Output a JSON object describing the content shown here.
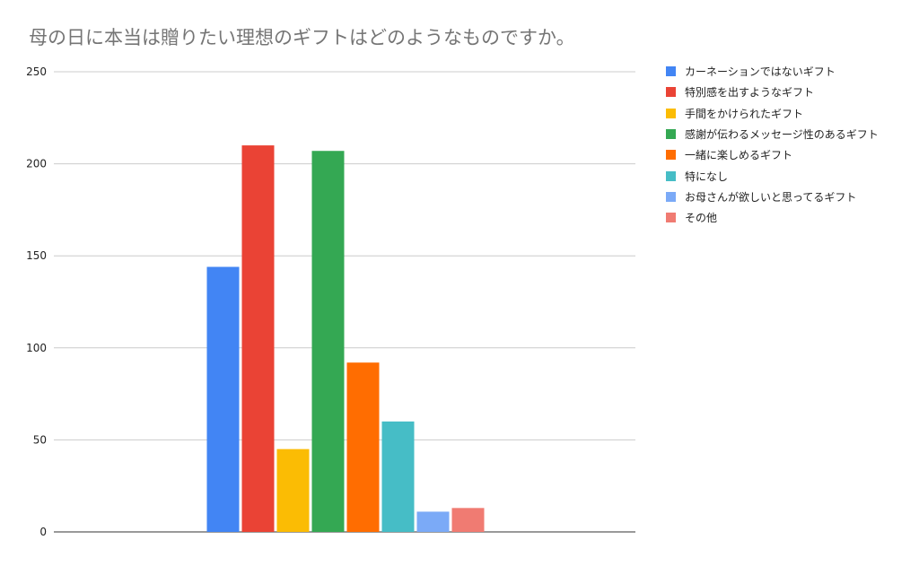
{
  "chart_data": {
    "type": "bar",
    "title": "母の日に本当は贈りたい理想のギフトはどのようなものですか。",
    "xlabel": "",
    "ylabel": "",
    "ylim": [
      0,
      250
    ],
    "yticks": [
      0,
      50,
      100,
      150,
      200,
      250
    ],
    "grid": true,
    "legend_position": "right",
    "series": [
      {
        "name": "カーネーションではないギフト",
        "values": [
          144
        ],
        "color": "#4285f4"
      },
      {
        "name": "特別感を出すようなギフト",
        "values": [
          210
        ],
        "color": "#ea4335"
      },
      {
        "name": "手間をかけられたギフト",
        "values": [
          45
        ],
        "color": "#fbbc04"
      },
      {
        "name": "感謝が伝わるメッセージ性のあるギフト",
        "values": [
          207
        ],
        "color": "#34a853"
      },
      {
        "name": "一緒に楽しめるギフト",
        "values": [
          92
        ],
        "color": "#ff6d01"
      },
      {
        "name": "特になし",
        "values": [
          60
        ],
        "color": "#46bdc6"
      },
      {
        "name": "お母さんが欲しいと思ってるギフト",
        "values": [
          11
        ],
        "color": "#7baaf7"
      },
      {
        "name": "その他",
        "values": [
          13
        ],
        "color": "#f07b72"
      }
    ]
  }
}
